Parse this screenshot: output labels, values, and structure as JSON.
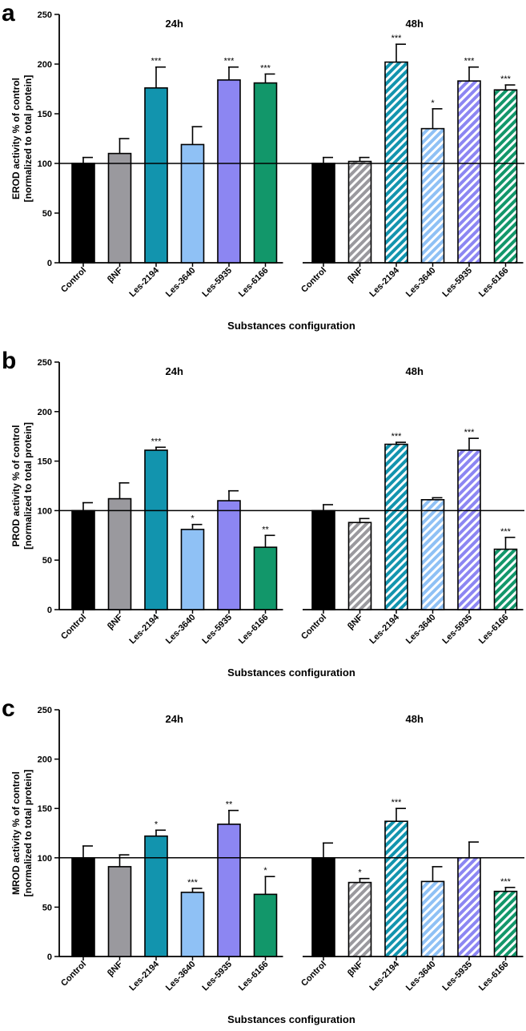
{
  "chart_data": [
    {
      "type": "bar",
      "panel_label": "a",
      "ylabel_line1": "EROD activity % of control",
      "ylabel_line2": "[normalized to total protein]",
      "xlabel": "Substances configuration",
      "ylim": [
        0,
        250
      ],
      "yticks": [
        "0",
        "50",
        "100",
        "150",
        "200",
        "250"
      ],
      "reference_line": 100,
      "groups": [
        {
          "name": "24h",
          "pattern": "solid",
          "categories": [
            "Control",
            "βNF",
            "Les-2194",
            "Les-3640",
            "Les-5935",
            "Les-6166"
          ],
          "values": [
            100,
            110,
            176,
            119,
            184,
            181
          ],
          "errors": [
            6,
            15,
            21,
            18,
            13,
            9
          ],
          "significance": [
            "",
            "",
            "***",
            "",
            "***",
            "***"
          ]
        },
        {
          "name": "48h",
          "pattern": "hatched",
          "categories": [
            "Control",
            "βNF",
            "Les-2194",
            "Les-3640",
            "Les-5935",
            "Les-6166"
          ],
          "values": [
            100,
            102,
            202,
            135,
            183,
            174
          ],
          "errors": [
            6,
            4,
            18,
            20,
            14,
            5
          ],
          "significance": [
            "",
            "",
            "***",
            "*",
            "***",
            "***"
          ]
        }
      ]
    },
    {
      "type": "bar",
      "panel_label": "b",
      "ylabel_line1": "PROD activity % of control",
      "ylabel_line2": "[normalized to total protein]",
      "xlabel": "Substances configuration",
      "ylim": [
        0,
        250
      ],
      "yticks": [
        "0",
        "50",
        "100",
        "150",
        "200",
        "250"
      ],
      "reference_line": 100,
      "groups": [
        {
          "name": "24h",
          "pattern": "solid",
          "categories": [
            "Control",
            "βNF",
            "Les-2194",
            "Les-3640",
            "Les-5935",
            "Les-6166"
          ],
          "values": [
            100,
            112,
            161,
            81,
            110,
            63
          ],
          "errors": [
            8,
            16,
            3,
            5,
            10,
            12
          ],
          "significance": [
            "",
            "",
            "***",
            "*",
            "",
            "**"
          ]
        },
        {
          "name": "48h",
          "pattern": "hatched",
          "categories": [
            "Control",
            "βNF",
            "Les-2194",
            "Les-3640",
            "Les-5935",
            "Les-6166"
          ],
          "values": [
            100,
            88,
            167,
            111,
            161,
            61
          ],
          "errors": [
            6,
            4,
            2,
            2,
            12,
            12
          ],
          "significance": [
            "",
            "",
            "***",
            "",
            "***",
            "***"
          ]
        }
      ]
    },
    {
      "type": "bar",
      "panel_label": "c",
      "ylabel_line1": "MROD activity % of control",
      "ylabel_line2": "[normalized to total protein]",
      "xlabel": "Substances configuration",
      "ylim": [
        0,
        250
      ],
      "yticks": [
        "0",
        "50",
        "100",
        "150",
        "200",
        "250"
      ],
      "reference_line": 100,
      "groups": [
        {
          "name": "24h",
          "pattern": "solid",
          "categories": [
            "Control",
            "βNF",
            "Les-2194",
            "Les-3640",
            "Les-5935",
            "Les-6166"
          ],
          "values": [
            100,
            91,
            122,
            65,
            134,
            63
          ],
          "errors": [
            12,
            12,
            6,
            4,
            14,
            18
          ],
          "significance": [
            "",
            "",
            "*",
            "***",
            "**",
            "*"
          ]
        },
        {
          "name": "48h",
          "pattern": "hatched",
          "categories": [
            "Control",
            "βNF",
            "Les-2194",
            "Les-3640",
            "Les-5935",
            "Les-6166"
          ],
          "values": [
            100,
            75,
            137,
            76,
            100,
            66
          ],
          "errors": [
            15,
            4,
            13,
            15,
            16,
            4
          ],
          "significance": [
            "",
            "*",
            "***",
            "",
            "",
            "***"
          ]
        }
      ]
    }
  ],
  "colors": {
    "Control": "#000000",
    "βNF": "#9a999e",
    "Les-2194": "#1294ae",
    "Les-3640": "#8fc1f5",
    "Les-5935": "#8c86f2",
    "Les-6166": "#12976a"
  }
}
